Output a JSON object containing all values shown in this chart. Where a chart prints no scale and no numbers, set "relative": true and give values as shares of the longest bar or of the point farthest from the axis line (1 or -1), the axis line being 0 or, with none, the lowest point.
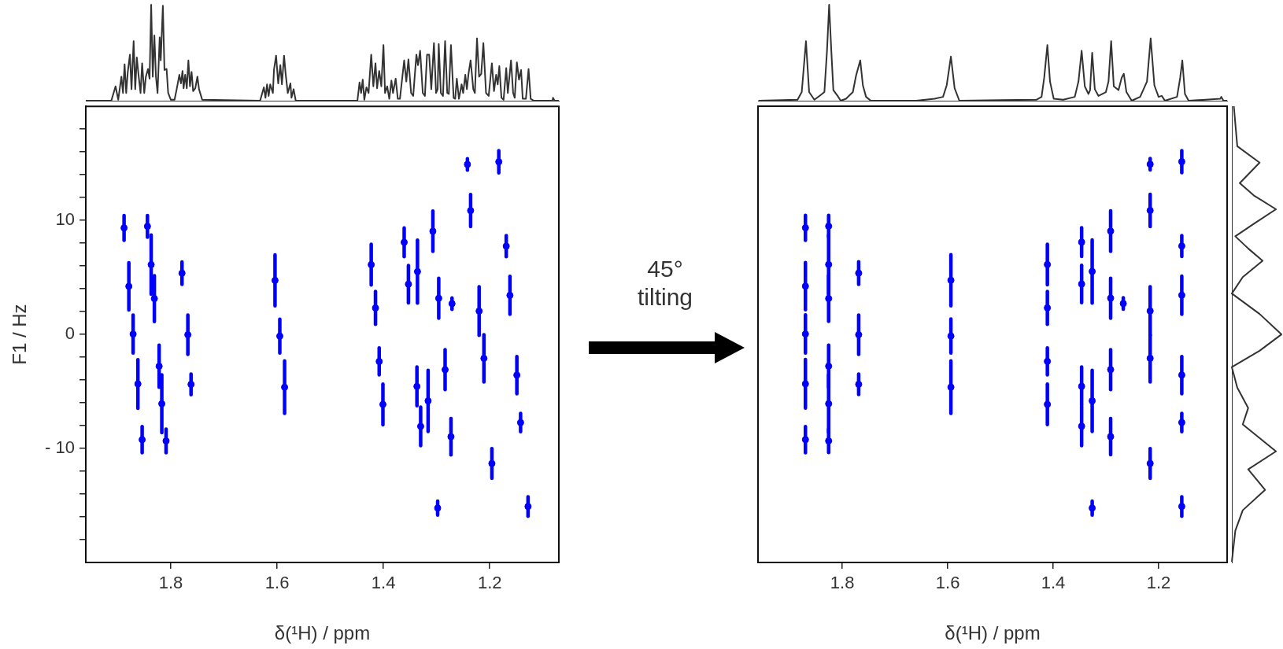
{
  "chart_data": [
    {
      "type": "line",
      "relative": true,
      "tick_labels": false,
      "color": "#333333",
      "xlim": [
        1.96,
        1.07
      ],
      "xticks": [
        1.8,
        1.6,
        1.4,
        1.2
      ],
      "x": [
        1.96,
        1.912,
        1.904,
        1.899,
        1.893,
        1.89,
        1.887,
        1.884,
        1.881,
        1.877,
        1.874,
        1.87,
        1.867,
        1.864,
        1.861,
        1.857,
        1.854,
        1.85,
        1.847,
        1.843,
        1.84,
        1.837,
        1.834,
        1.831,
        1.828,
        1.825,
        1.821,
        1.819,
        1.815,
        1.812,
        1.808,
        1.805,
        1.8,
        1.793,
        1.789,
        1.784,
        1.781,
        1.778,
        1.776,
        1.773,
        1.77,
        1.767,
        1.764,
        1.761,
        1.758,
        1.754,
        1.75,
        1.747,
        1.741,
        1.632,
        1.625,
        1.622,
        1.619,
        1.616,
        1.613,
        1.608,
        1.606,
        1.602,
        1.598,
        1.594,
        1.591,
        1.587,
        1.584,
        1.58,
        1.575,
        1.573,
        1.569,
        1.565,
        1.449,
        1.445,
        1.442,
        1.439,
        1.436,
        1.432,
        1.428,
        1.423,
        1.419,
        1.415,
        1.412,
        1.408,
        1.404,
        1.4,
        1.397,
        1.393,
        1.389,
        1.385,
        1.382,
        1.377,
        1.373,
        1.369,
        1.361,
        1.357,
        1.353,
        1.348,
        1.344,
        1.338,
        1.335,
        1.331,
        1.326,
        1.322,
        1.318,
        1.314,
        1.31,
        1.305,
        1.301,
        1.298,
        1.296,
        1.292,
        1.288,
        1.284,
        1.28,
        1.277,
        1.273,
        1.268,
        1.265,
        1.262,
        1.258,
        1.253,
        1.25,
        1.246,
        1.243,
        1.24,
        1.236,
        1.231,
        1.228,
        1.224,
        1.22,
        1.216,
        1.212,
        1.207,
        1.202,
        1.196,
        1.192,
        1.188,
        1.185,
        1.182,
        1.178,
        1.174,
        1.169,
        1.166,
        1.16,
        1.156,
        1.153,
        1.149,
        1.145,
        1.141,
        1.138,
        1.132,
        1.127,
        1.123,
        1.117,
        1.082,
        1.081,
        1.078,
        1.07
      ],
      "values": [
        0,
        0,
        0.15,
        0.01,
        0.25,
        0.08,
        0.38,
        0.08,
        0.3,
        0.48,
        0.12,
        0.62,
        0.12,
        0.45,
        0.28,
        0.08,
        0.39,
        0.08,
        0.25,
        0.33,
        0.23,
        1.0,
        0.25,
        0.68,
        0.25,
        0.08,
        0.66,
        0.42,
        0.99,
        0.32,
        0.33,
        0.08,
        0.01,
        0.01,
        0.12,
        0.27,
        0.18,
        0.31,
        0.13,
        0.27,
        0.13,
        0.42,
        0.15,
        0.3,
        0.1,
        0.13,
        0.25,
        0.12,
        0.01,
        0,
        0.14,
        0.03,
        0.17,
        0.05,
        0.17,
        0.08,
        0.32,
        0.47,
        0.18,
        0.37,
        0.17,
        0.47,
        0.28,
        0.08,
        0.18,
        0.03,
        0.12,
        0,
        0,
        0.19,
        0.08,
        0.22,
        0.01,
        0.14,
        0.08,
        0.48,
        0.15,
        0.39,
        0.13,
        0.31,
        0.15,
        0.58,
        0.08,
        0.15,
        0.02,
        0.21,
        0.08,
        0.23,
        0.02,
        0.02,
        0.42,
        0.2,
        0.43,
        0.08,
        0.05,
        0.48,
        0.37,
        0.52,
        0.08,
        0.05,
        0.48,
        0.48,
        0.12,
        0.6,
        0.08,
        0.12,
        0.59,
        0.08,
        0.05,
        0.62,
        0.08,
        0.07,
        0.58,
        0.03,
        0.02,
        0.23,
        0.02,
        0.17,
        0.08,
        0.27,
        0.12,
        0.28,
        0.42,
        0.12,
        0.08,
        0.65,
        0.25,
        0.28,
        0.6,
        0.08,
        0.05,
        0.39,
        0.1,
        0.27,
        0.17,
        0.36,
        0.03,
        0.01,
        0.34,
        0.08,
        0.42,
        0.08,
        0.03,
        0.4,
        0.22,
        0.32,
        0.02,
        0.02,
        0.33,
        0.02,
        0,
        0,
        0.03,
        0,
        0
      ]
    },
    {
      "type": "scatter",
      "xlabel": "δ(¹H) / ppm",
      "ylabel": "F1 / Hz",
      "color": "#0000ff",
      "marker": "circle",
      "annotations": [
        "45°",
        "tilting"
      ],
      "x": [
        1.888,
        1.844,
        1.837,
        1.831,
        1.879,
        1.871,
        1.862,
        1.854,
        1.822,
        1.817,
        1.809,
        1.779,
        1.768,
        1.762,
        1.604,
        1.595,
        1.586,
        1.423,
        1.415,
        1.408,
        1.401,
        1.361,
        1.353,
        1.336,
        1.307,
        1.296,
        1.271,
        1.242,
        1.183,
        1.236,
        1.169,
        1.162,
        1.22,
        1.211,
        1.284,
        1.337,
        1.316,
        1.33,
        1.273,
        1.196,
        1.149,
        1.142,
        1.298,
        1.128
      ],
      "values": [
        9.34,
        9.48,
        6.12,
        3.14,
        4.22,
        0.03,
        -4.34,
        -9.23,
        -2.79,
        -6.08,
        -9.34,
        5.37,
        -0.03,
        -4.38,
        4.74,
        -0.15,
        -4.63,
        6.12,
        2.32,
        -2.37,
        -6.14,
        8.08,
        4.41,
        5.51,
        9.05,
        3.17,
        2.7,
        14.91,
        15.14,
        10.86,
        7.74,
        3.43,
        2.05,
        -2.1,
        -3.09,
        -4.56,
        -5.83,
        -8.06,
        -8.97,
        -11.32,
        -3.57,
        -7.73,
        -15.23,
        -15.09
      ],
      "errors": [
        1.09,
        0.95,
        2.59,
        2.01,
        2.07,
        1.67,
        2.13,
        1.15,
        1.84,
        2.53,
        1.03,
        0.99,
        1.72,
        0.9,
        2.24,
        1.49,
        2.3,
        1.78,
        1.44,
        1.18,
        1.78,
        1.26,
        1.64,
        2.76,
        1.77,
        1.75,
        0.5,
        0.5,
        0.97,
        1.41,
        0.92,
        1.67,
        2.13,
        2.07,
        1.75,
        1.7,
        2.68,
        1.69,
        1.59,
        1.3,
        1.63,
        0.8,
        0.61,
        0.85
      ],
      "xlim": [
        1.96,
        1.07
      ],
      "xticks": [
        1.8,
        1.6,
        1.4,
        1.2
      ],
      "ylim": [
        -20,
        20
      ],
      "yticks": [
        {
          "value": -18,
          "label": null
        },
        {
          "value": -16,
          "label": null
        },
        {
          "value": -14,
          "label": null
        },
        {
          "value": -12,
          "label": null
        },
        {
          "value": -10,
          "label": "- 10"
        },
        {
          "value": -8,
          "label": null
        },
        {
          "value": -6,
          "label": null
        },
        {
          "value": -4,
          "label": null
        },
        {
          "value": -2,
          "label": null
        },
        0,
        {
          "value": 2,
          "label": null
        },
        {
          "value": 4,
          "label": null
        },
        {
          "value": 6,
          "label": null
        },
        {
          "value": 8,
          "label": null
        },
        10,
        {
          "value": 12,
          "label": null
        },
        {
          "value": 14,
          "label": null
        },
        {
          "value": 16,
          "label": null
        },
        {
          "value": 18,
          "label": null
        }
      ]
    },
    {
      "type": "line",
      "relative": true,
      "tick_labels": false,
      "color": "#333333",
      "xlim": [
        1.96,
        1.07
      ],
      "xticks": [
        1.8,
        1.6,
        1.4,
        1.2
      ],
      "x": [
        1.959,
        1.885,
        1.877,
        1.869,
        1.863,
        1.853,
        1.841,
        1.834,
        1.829,
        1.825,
        1.821,
        1.817,
        1.809,
        1.803,
        1.793,
        1.78,
        1.774,
        1.766,
        1.761,
        1.755,
        1.746,
        1.66,
        1.625,
        1.609,
        1.602,
        1.594,
        1.587,
        1.578,
        1.432,
        1.422,
        1.417,
        1.411,
        1.406,
        1.399,
        1.381,
        1.359,
        1.352,
        1.346,
        1.34,
        1.333,
        1.33,
        1.326,
        1.321,
        1.314,
        1.3,
        1.295,
        1.29,
        1.285,
        1.276,
        1.27,
        1.266,
        1.261,
        1.251,
        1.235,
        1.222,
        1.215,
        1.208,
        1.2,
        1.194,
        1.188,
        1.165,
        1.159,
        1.155,
        1.15,
        1.143,
        1.083,
        1.081,
        1.077,
        1.07
      ],
      "values": [
        0,
        0.01,
        0.09,
        0.62,
        0.09,
        0.01,
        0.06,
        0.09,
        0.53,
        1.0,
        0.53,
        0.11,
        0.05,
        0,
        0.02,
        0.09,
        0.26,
        0.42,
        0.16,
        0.04,
        0,
        0,
        0.02,
        0.04,
        0.16,
        0.46,
        0.13,
        0,
        0.01,
        0.04,
        0.24,
        0.58,
        0.2,
        0.02,
        0.01,
        0.04,
        0.2,
        0.52,
        0.15,
        0.07,
        0.11,
        0.5,
        0.12,
        0.05,
        0.09,
        0.2,
        0.62,
        0.15,
        0.11,
        0.24,
        0.28,
        0.09,
        0,
        0.04,
        0.2,
        0.65,
        0.16,
        0.04,
        0.05,
        0,
        0.04,
        0.24,
        0.42,
        0.07,
        0,
        0.02,
        0.04,
        0,
        0
      ]
    },
    {
      "type": "scatter",
      "xlabel": "δ(¹H) / ppm",
      "color": "#0000ff",
      "marker": "circle",
      "tick_labels": "x",
      "x": [
        1.87,
        1.826,
        1.826,
        1.826,
        1.87,
        1.87,
        1.87,
        1.87,
        1.826,
        1.826,
        1.826,
        1.769,
        1.769,
        1.769,
        1.594,
        1.594,
        1.594,
        1.411,
        1.411,
        1.411,
        1.411,
        1.346,
        1.346,
        1.326,
        1.291,
        1.291,
        1.267,
        1.216,
        1.156,
        1.216,
        1.156,
        1.156,
        1.216,
        1.216,
        1.291,
        1.346,
        1.326,
        1.346,
        1.291,
        1.216,
        1.156,
        1.156,
        1.326,
        1.156
      ],
      "values": [
        9.34,
        9.48,
        6.12,
        3.14,
        4.22,
        0.03,
        -4.34,
        -9.23,
        -2.79,
        -6.08,
        -9.34,
        5.37,
        -0.03,
        -4.38,
        4.74,
        -0.15,
        -4.63,
        6.12,
        2.32,
        -2.37,
        -6.14,
        8.08,
        4.41,
        5.51,
        9.05,
        3.17,
        2.7,
        14.91,
        15.14,
        10.86,
        7.74,
        3.43,
        2.05,
        -2.1,
        -3.09,
        -4.56,
        -5.83,
        -8.06,
        -8.97,
        -11.32,
        -3.57,
        -7.73,
        -15.23,
        -15.09
      ],
      "errors": [
        1.09,
        0.95,
        2.59,
        2.01,
        2.07,
        1.67,
        2.13,
        1.15,
        1.84,
        2.53,
        1.03,
        0.99,
        1.72,
        0.9,
        2.24,
        1.49,
        2.3,
        1.78,
        1.44,
        1.18,
        1.78,
        1.26,
        1.64,
        2.76,
        1.77,
        1.75,
        0.5,
        0.5,
        0.97,
        1.41,
        0.92,
        1.67,
        2.13,
        2.07,
        1.75,
        1.7,
        2.68,
        1.69,
        1.59,
        1.3,
        1.63,
        0.8,
        0.61,
        0.85
      ],
      "xlim": [
        1.96,
        1.07
      ],
      "xticks": [
        1.8,
        1.6,
        1.4,
        1.2
      ],
      "ylim": [
        -20,
        20
      ]
    },
    {
      "type": "line",
      "relative": true,
      "orientation": "horizontal",
      "tick_labels": false,
      "color": "#333333",
      "ylim": [
        -20,
        20
      ],
      "yticks": [
        -10,
        0,
        10
      ],
      "x": [
        20,
        16.49,
        15.05,
        13.26,
        12.19,
        10.97,
        9.68,
        8.6,
        7.53,
        6.45,
        5.02,
        3.58,
        1.79,
        0,
        -1.43,
        -2.87,
        -4.66,
        -6.45,
        -7.89,
        -10.25,
        -11.83,
        -13.62,
        -15.41,
        -17.2,
        -19.93
      ],
      "values": [
        0.04,
        0.11,
        0.56,
        0.16,
        0.44,
        0.89,
        0.44,
        0.07,
        0.33,
        0.62,
        0.22,
        0,
        0.56,
        1.0,
        0.56,
        0,
        0.11,
        0.33,
        0.22,
        0.89,
        0.33,
        0.67,
        0.22,
        0.07,
        0
      ]
    }
  ]
}
